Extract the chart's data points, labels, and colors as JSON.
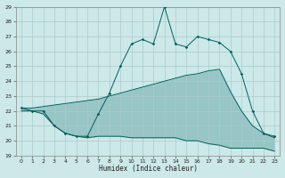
{
  "xlabel": "Humidex (Indice chaleur)",
  "bg_color": "#cce8e8",
  "grid_color": "#b0d4d4",
  "line_color": "#006060",
  "xlim": [
    -0.5,
    23.5
  ],
  "ylim": [
    19,
    29
  ],
  "yticks": [
    19,
    20,
    21,
    22,
    23,
    24,
    25,
    26,
    27,
    28,
    29
  ],
  "xticks": [
    0,
    1,
    2,
    3,
    4,
    5,
    6,
    7,
    8,
    9,
    10,
    11,
    12,
    13,
    14,
    15,
    16,
    17,
    18,
    19,
    20,
    21,
    22,
    23
  ],
  "series_main": [
    [
      0,
      22.2
    ],
    [
      1,
      22.0
    ],
    [
      2,
      22.0
    ],
    [
      3,
      21.0
    ],
    [
      4,
      20.5
    ],
    [
      5,
      20.3
    ],
    [
      6,
      20.3
    ],
    [
      7,
      21.8
    ],
    [
      8,
      23.2
    ],
    [
      9,
      25.0
    ],
    [
      10,
      26.5
    ],
    [
      11,
      26.8
    ],
    [
      12,
      26.5
    ],
    [
      13,
      29.0
    ],
    [
      14,
      26.5
    ],
    [
      15,
      26.3
    ],
    [
      16,
      27.0
    ],
    [
      17,
      26.8
    ],
    [
      18,
      26.6
    ],
    [
      19,
      26.0
    ],
    [
      20,
      24.5
    ],
    [
      21,
      22.0
    ],
    [
      22,
      20.5
    ],
    [
      23,
      20.3
    ]
  ],
  "series_lower": [
    [
      0,
      22.0
    ],
    [
      1,
      22.0
    ],
    [
      2,
      21.8
    ],
    [
      3,
      21.0
    ],
    [
      4,
      20.5
    ],
    [
      5,
      20.3
    ],
    [
      6,
      20.2
    ],
    [
      7,
      20.3
    ],
    [
      8,
      20.3
    ],
    [
      9,
      20.3
    ],
    [
      10,
      20.2
    ],
    [
      11,
      20.2
    ],
    [
      12,
      20.2
    ],
    [
      13,
      20.2
    ],
    [
      14,
      20.2
    ],
    [
      15,
      20.0
    ],
    [
      16,
      20.0
    ],
    [
      17,
      19.8
    ],
    [
      18,
      19.7
    ],
    [
      19,
      19.5
    ],
    [
      20,
      19.5
    ],
    [
      21,
      19.5
    ],
    [
      22,
      19.5
    ],
    [
      23,
      19.3
    ]
  ],
  "series_upper": [
    [
      0,
      22.2
    ],
    [
      1,
      22.2
    ],
    [
      2,
      22.3
    ],
    [
      3,
      22.4
    ],
    [
      4,
      22.5
    ],
    [
      5,
      22.6
    ],
    [
      6,
      22.7
    ],
    [
      7,
      22.8
    ],
    [
      8,
      23.0
    ],
    [
      9,
      23.2
    ],
    [
      10,
      23.4
    ],
    [
      11,
      23.6
    ],
    [
      12,
      23.8
    ],
    [
      13,
      24.0
    ],
    [
      14,
      24.2
    ],
    [
      15,
      24.4
    ],
    [
      16,
      24.5
    ],
    [
      17,
      24.7
    ],
    [
      18,
      24.8
    ],
    [
      19,
      23.3
    ],
    [
      20,
      22.0
    ],
    [
      21,
      21.0
    ],
    [
      22,
      20.5
    ],
    [
      23,
      20.2
    ]
  ]
}
